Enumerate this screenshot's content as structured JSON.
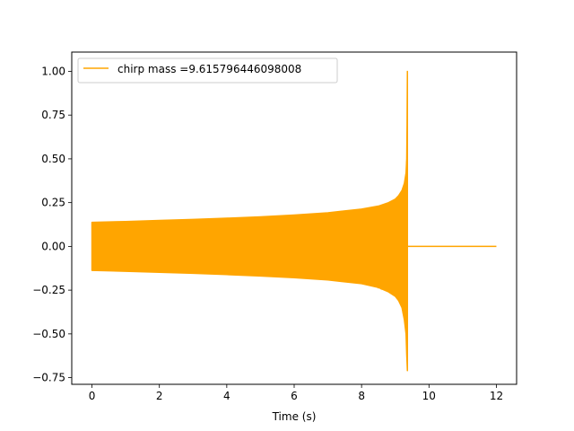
{
  "chart_data": {
    "type": "line",
    "title": "",
    "xlabel": "Time (s)",
    "ylabel": "",
    "xlim": [
      -0.6,
      12.6
    ],
    "ylim": [
      -0.788,
      1.11
    ],
    "x_ticks": [
      0,
      2,
      4,
      6,
      8,
      10,
      12
    ],
    "x_tick_labels": [
      "0",
      "2",
      "4",
      "6",
      "8",
      "10",
      "12"
    ],
    "y_ticks": [
      -0.75,
      -0.5,
      -0.25,
      0.0,
      0.25,
      0.5,
      0.75,
      1.0
    ],
    "y_tick_labels": [
      "−0.75",
      "−0.50",
      "−0.25",
      "0.00",
      "0.25",
      "0.50",
      "0.75",
      "1.00"
    ],
    "grid": false,
    "legend_position": "upper-left",
    "series": [
      {
        "name": "chirp mass =9.615796446098008",
        "color": "#ffa500",
        "x": [
          0,
          9.35,
          9.37,
          9.39,
          9.4,
          12.0
        ],
        "y_upper": [
          0.14,
          0.35,
          0.5,
          1.0,
          0.0,
          0.0
        ],
        "y_lower": [
          -0.14,
          -0.35,
          -0.5,
          -0.71,
          0.0,
          0.0
        ],
        "envelope_upper": [
          [
            0.0,
            0.137
          ],
          [
            1.0,
            0.142
          ],
          [
            2.0,
            0.148
          ],
          [
            3.0,
            0.154
          ],
          [
            4.0,
            0.161
          ],
          [
            5.0,
            0.169
          ],
          [
            6.0,
            0.179
          ],
          [
            7.0,
            0.192
          ],
          [
            8.0,
            0.213
          ],
          [
            8.5,
            0.23
          ],
          [
            8.8,
            0.25
          ],
          [
            9.0,
            0.27
          ],
          [
            9.1,
            0.29
          ],
          [
            9.2,
            0.32
          ],
          [
            9.27,
            0.36
          ],
          [
            9.32,
            0.42
          ],
          [
            9.34,
            0.5
          ],
          [
            9.35,
            0.7
          ],
          [
            9.36,
            1.0
          ]
        ],
        "envelope_lower": [
          [
            0.0,
            -0.137
          ],
          [
            1.0,
            -0.142
          ],
          [
            2.0,
            -0.148
          ],
          [
            3.0,
            -0.154
          ],
          [
            4.0,
            -0.161
          ],
          [
            5.0,
            -0.169
          ],
          [
            6.0,
            -0.179
          ],
          [
            7.0,
            -0.192
          ],
          [
            8.0,
            -0.213
          ],
          [
            8.5,
            -0.235
          ],
          [
            8.8,
            -0.26
          ],
          [
            9.0,
            -0.285
          ],
          [
            9.1,
            -0.31
          ],
          [
            9.2,
            -0.35
          ],
          [
            9.27,
            -0.42
          ],
          [
            9.32,
            -0.5
          ],
          [
            9.34,
            -0.62
          ],
          [
            9.36,
            -0.71
          ]
        ],
        "merger_time": 9.36,
        "end_time": 12.0
      }
    ]
  }
}
